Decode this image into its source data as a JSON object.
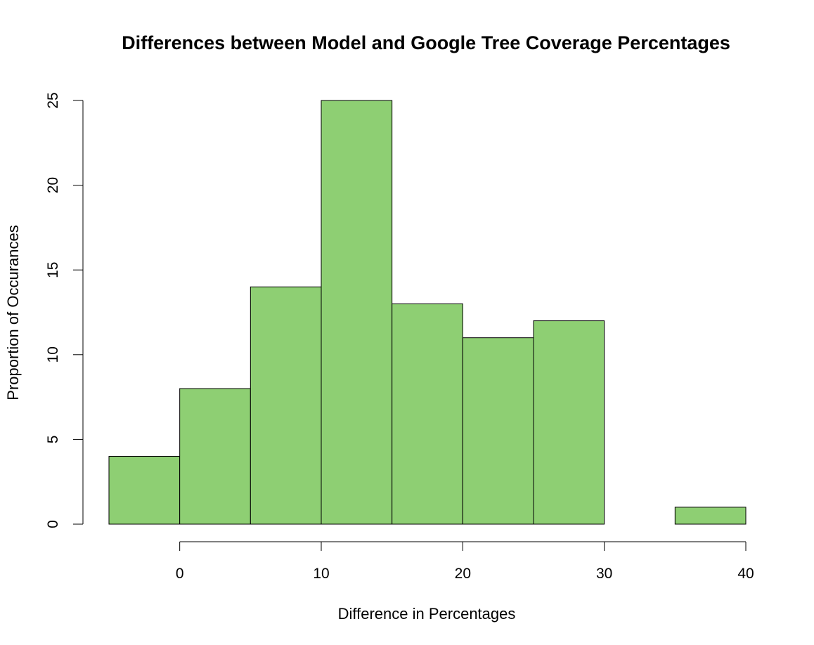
{
  "chart_data": {
    "type": "bar",
    "title": "Differences between Model and Google Tree Coverage Percentages",
    "xlabel": "Difference in Percentages",
    "ylabel": "Proportion of Occurances",
    "bins": [
      {
        "start": -5,
        "end": 0,
        "value": 4
      },
      {
        "start": 0,
        "end": 5,
        "value": 8
      },
      {
        "start": 5,
        "end": 10,
        "value": 14
      },
      {
        "start": 10,
        "end": 15,
        "value": 25
      },
      {
        "start": 15,
        "end": 20,
        "value": 13
      },
      {
        "start": 20,
        "end": 25,
        "value": 11
      },
      {
        "start": 25,
        "end": 30,
        "value": 12
      },
      {
        "start": 30,
        "end": 35,
        "value": 0
      },
      {
        "start": 35,
        "end": 40,
        "value": 1
      }
    ],
    "x_ticks": [
      0,
      10,
      20,
      30,
      40
    ],
    "y_ticks": [
      0,
      5,
      10,
      15,
      20,
      25
    ],
    "x_tick_labels": [
      "0",
      "10",
      "20",
      "30",
      "40"
    ],
    "y_tick_labels": [
      "0",
      "5",
      "10",
      "15",
      "20",
      "25"
    ],
    "xlim": [
      -5,
      40
    ],
    "ylim": [
      0,
      25
    ],
    "bar_color": "#8ecf73",
    "bar_edge_color": "#000000",
    "grid": false,
    "legend": false
  }
}
